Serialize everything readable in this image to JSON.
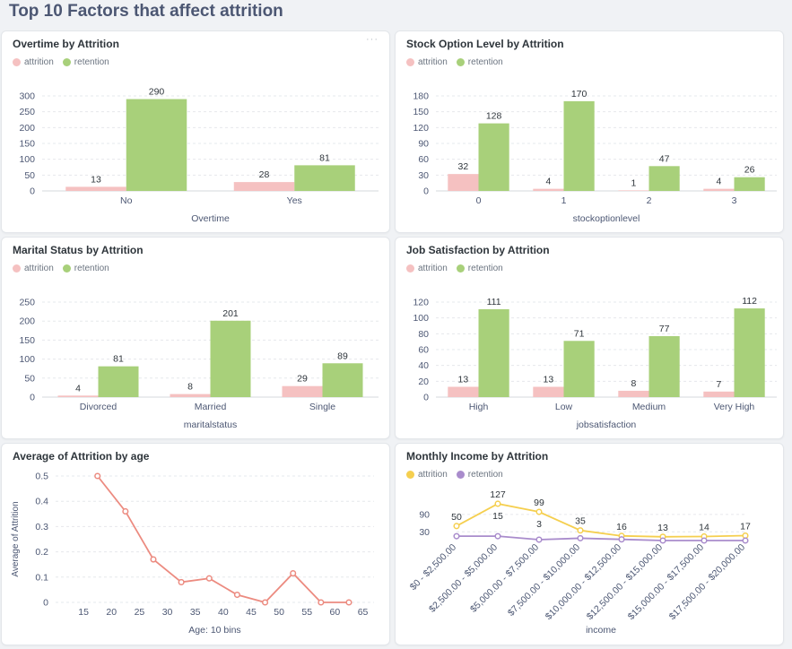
{
  "page_title": "Top 10 Factors that affect attrition",
  "colors": {
    "attrition_bar": "#f5c1c1",
    "retention_bar": "#a8d07a",
    "line_red": "#ec8b80",
    "attrition_line": "#f5cf4f",
    "retention_line": "#a98ccc",
    "grid": "#e6e8ec",
    "axis_text": "#4c5773"
  },
  "card_menu": "···",
  "chart_data": [
    {
      "id": "overtime",
      "type": "bar",
      "title": "Overtime by Attrition",
      "xlabel": "Overtime",
      "ylabel": "",
      "categories": [
        "No",
        "Yes"
      ],
      "series": [
        {
          "name": "attrition",
          "values": [
            13,
            28
          ]
        },
        {
          "name": "retention",
          "values": [
            290,
            81
          ]
        }
      ],
      "yticks": [
        0,
        50,
        100,
        150,
        200,
        250,
        300
      ],
      "ylim": [
        0,
        300
      ]
    },
    {
      "id": "stock",
      "type": "bar",
      "title": "Stock Option Level by Attrition",
      "xlabel": "stockoptionlevel",
      "ylabel": "",
      "categories": [
        "0",
        "1",
        "2",
        "3"
      ],
      "series": [
        {
          "name": "attrition",
          "values": [
            32,
            4,
            1,
            4
          ]
        },
        {
          "name": "retention",
          "values": [
            128,
            170,
            47,
            26
          ]
        }
      ],
      "yticks": [
        0,
        30,
        60,
        90,
        120,
        150,
        180
      ],
      "ylim": [
        0,
        180
      ]
    },
    {
      "id": "marital",
      "type": "bar",
      "title": "Marital Status by Attrition",
      "xlabel": "maritalstatus",
      "ylabel": "",
      "categories": [
        "Divorced",
        "Married",
        "Single"
      ],
      "series": [
        {
          "name": "attrition",
          "values": [
            4,
            8,
            29
          ]
        },
        {
          "name": "retention",
          "values": [
            81,
            201,
            89
          ]
        }
      ],
      "yticks": [
        0,
        50,
        100,
        150,
        200,
        250
      ],
      "ylim": [
        0,
        250
      ]
    },
    {
      "id": "jobsat",
      "type": "bar",
      "title": "Job Satisfaction by Attrition",
      "xlabel": "jobsatisfaction",
      "ylabel": "",
      "categories": [
        "High",
        "Low",
        "Medium",
        "Very High"
      ],
      "series": [
        {
          "name": "attrition",
          "values": [
            13,
            13,
            8,
            7
          ]
        },
        {
          "name": "retention",
          "values": [
            111,
            71,
            77,
            112
          ]
        }
      ],
      "yticks": [
        0,
        20,
        40,
        60,
        80,
        100,
        120
      ],
      "ylim": [
        0,
        120
      ]
    },
    {
      "id": "age",
      "type": "line",
      "title": "Average of Attrition by age",
      "xlabel": "Age: 10 bins",
      "ylabel": "Average of Attrition",
      "x": [
        17.5,
        22.5,
        27.5,
        32.5,
        37.5,
        42.5,
        47.5,
        52.5,
        57.5,
        62.5
      ],
      "y": [
        0.5,
        0.36,
        0.17,
        0.08,
        0.095,
        0.03,
        0.0,
        0.115,
        0.0,
        0.0
      ],
      "xticks": [
        15,
        20,
        25,
        30,
        35,
        40,
        45,
        50,
        55,
        60,
        65
      ],
      "yticks": [
        0,
        0.1,
        0.2,
        0.3,
        0.4,
        0.5
      ],
      "ytick_labels": [
        "0",
        "0.1",
        "0.2",
        "0.3",
        "0.4",
        "0.5"
      ],
      "xlim": [
        10,
        67
      ],
      "ylim": [
        0,
        0.5
      ]
    },
    {
      "id": "income",
      "type": "line",
      "title": "Monthly Income by Attrition",
      "xlabel": "income",
      "ylabel": "",
      "categories": [
        "$0 - $2,500.00",
        "$2,500.00 - $5,000.00",
        "$5,000.00 - $7,500.00",
        "$7,500.00 - $10,000.00",
        "$10,000.00 - $12,500.00",
        "$12,500.00 - $15,000.00",
        "$15,000.00 - $17,500.00",
        "$17,500.00 - $20,000.00"
      ],
      "series": [
        {
          "name": "attrition",
          "values": [
            50,
            127,
            99,
            35,
            16,
            13,
            14,
            17
          ]
        },
        {
          "name": "retention",
          "values": [
            15,
            15,
            3,
            8,
            4,
            0,
            0,
            0
          ]
        }
      ],
      "shown_labels": {
        "attrition": [
          "50",
          "127",
          "99",
          "35",
          "16",
          "13",
          "14",
          "17"
        ],
        "retention": [
          "",
          "15",
          "3",
          "",
          "",
          "",
          "",
          ""
        ]
      },
      "yticks": [
        30,
        90
      ],
      "ylim": [
        0,
        130
      ]
    }
  ]
}
